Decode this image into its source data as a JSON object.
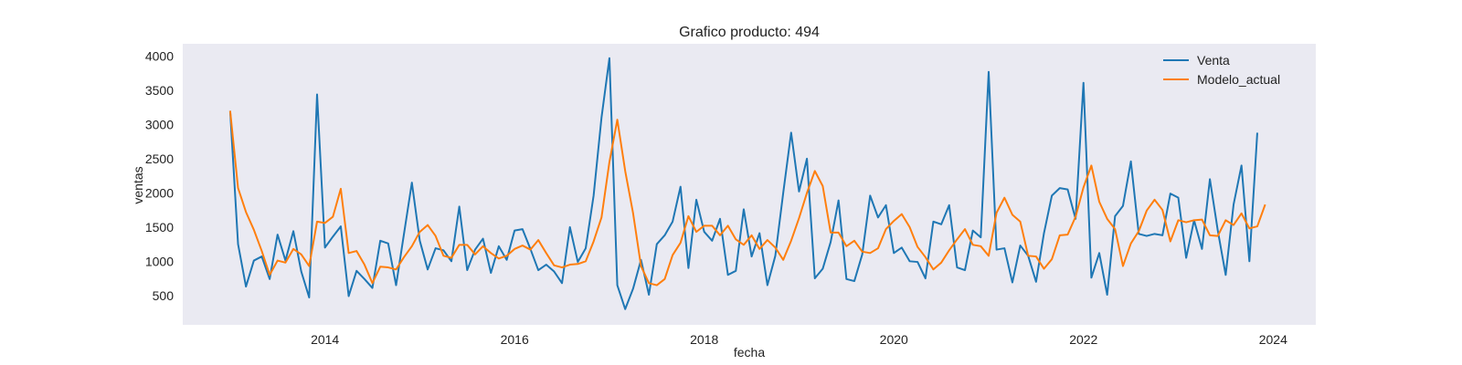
{
  "chart_data": {
    "type": "line",
    "title": "Grafico producto: 494",
    "xlabel": "fecha",
    "ylabel": "ventas",
    "xlim": [
      2012.5,
      2024.45
    ],
    "ylim": [
      70,
      4180
    ],
    "xticks": [
      2014,
      2016,
      2018,
      2020,
      2022,
      2024
    ],
    "yticks": [
      500,
      1000,
      1500,
      2000,
      2500,
      3000,
      3500,
      4000
    ],
    "grid": false,
    "background_color": "#eaeaf2",
    "legend_position": "top-right",
    "x_start": 2013.0,
    "x_step": 0.08333,
    "series": [
      {
        "name": "Venta",
        "color": "#1f77b4",
        "values": [
          3200,
          1250,
          630,
          1010,
          1070,
          740,
          1390,
          1010,
          1440,
          850,
          470,
          3440,
          1200,
          1360,
          1510,
          490,
          860,
          740,
          610,
          1300,
          1260,
          650,
          1400,
          2150,
          1300,
          880,
          1190,
          1160,
          1000,
          1800,
          870,
          1170,
          1330,
          830,
          1220,
          1020,
          1450,
          1470,
          1180,
          870,
          950,
          850,
          680,
          1500,
          990,
          1190,
          1960,
          3100,
          3970,
          650,
          300,
          600,
          1020,
          510,
          1250,
          1380,
          1580,
          2090,
          900,
          1900,
          1430,
          1300,
          1620,
          800,
          860,
          1760,
          1070,
          1410,
          650,
          1080,
          2000,
          2880,
          2020,
          2500,
          750,
          890,
          1280,
          1890,
          740,
          710,
          1100,
          1960,
          1640,
          1820,
          1120,
          1200,
          1000,
          990,
          750,
          1580,
          1540,
          1820,
          910,
          870,
          1450,
          1350,
          3770,
          1170,
          1190,
          690,
          1230,
          1080,
          700,
          1410,
          1960,
          2070,
          2050,
          1620,
          3610,
          760,
          1120,
          510,
          1660,
          1810,
          2460,
          1400,
          1370,
          1400,
          1380,
          1990,
          1930,
          1050,
          1600,
          1180,
          2200,
          1450,
          800,
          1830,
          2400,
          1000,
          2880
        ]
      },
      {
        "name": "Modelo_actual",
        "color": "#ff7f0e",
        "values": [
          3200,
          2070,
          1720,
          1460,
          1150,
          800,
          1010,
          980,
          1180,
          1100,
          930,
          1580,
          1560,
          1650,
          2060,
          1120,
          1150,
          950,
          680,
          920,
          910,
          880,
          1060,
          1220,
          1430,
          1530,
          1370,
          1080,
          1050,
          1240,
          1240,
          1100,
          1220,
          1120,
          1040,
          1080,
          1180,
          1230,
          1170,
          1310,
          1120,
          940,
          910,
          950,
          960,
          1000,
          1290,
          1640,
          2450,
          3070,
          2320,
          1700,
          930,
          680,
          650,
          740,
          1090,
          1270,
          1660,
          1430,
          1520,
          1520,
          1380,
          1520,
          1320,
          1240,
          1380,
          1180,
          1310,
          1200,
          1020,
          1300,
          1630,
          2000,
          2320,
          2100,
          1420,
          1420,
          1220,
          1300,
          1140,
          1120,
          1190,
          1470,
          1590,
          1690,
          1500,
          1210,
          1060,
          880,
          980,
          1160,
          1320,
          1470,
          1240,
          1220,
          1080,
          1710,
          1930,
          1680,
          1580,
          1080,
          1070,
          890,
          1030,
          1380,
          1390,
          1650,
          2080,
          2400,
          1870,
          1620,
          1470,
          930,
          1260,
          1440,
          1740,
          1900,
          1750,
          1290,
          1600,
          1570,
          1600,
          1610,
          1380,
          1370,
          1600,
          1530,
          1700,
          1480,
          1510,
          1830
        ]
      }
    ]
  }
}
